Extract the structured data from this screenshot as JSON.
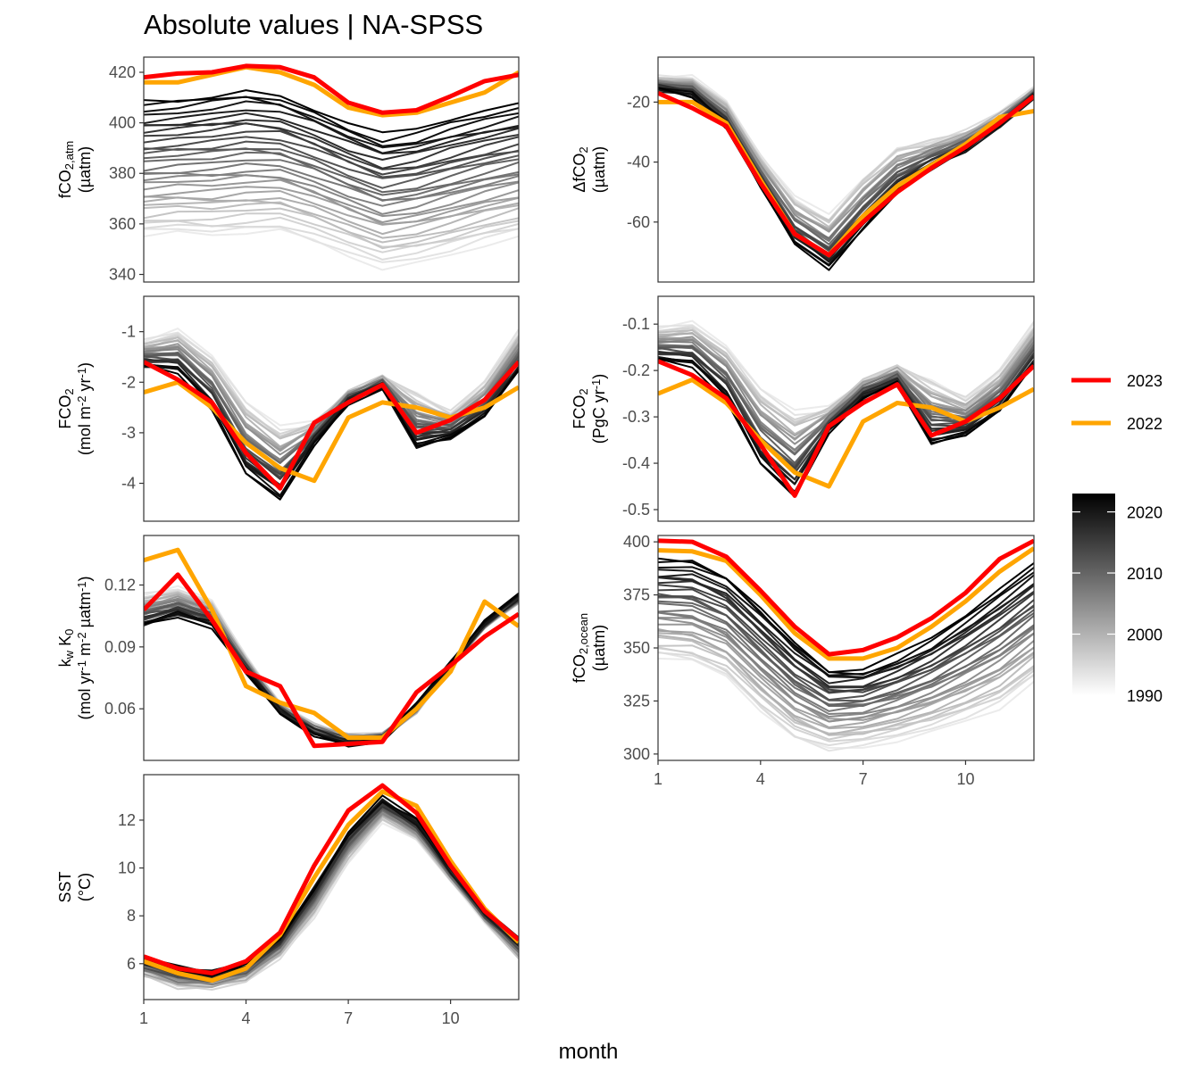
{
  "title": "Absolute values | NA-SPSS",
  "xlabel": "month",
  "highlight_colors": {
    "2023": "#ff0000",
    "2022": "#ffa500"
  },
  "legend": {
    "highlight": [
      {
        "label": "2023",
        "color": "#ff0000"
      },
      {
        "label": "2022",
        "color": "#ffa500"
      }
    ],
    "colorbar": {
      "labels": [
        "2020",
        "2010",
        "2000",
        "1990"
      ],
      "values": [
        2020,
        2010,
        2000,
        1990
      ],
      "range": [
        1990,
        2023
      ],
      "low_color": "#ffffff",
      "high_color": "#000000"
    }
  },
  "chart_data": [
    {
      "type": "line",
      "panel": "fco2-atm",
      "ylabel_lines": [
        "fCO",
        "2,atm",
        "(µatm)"
      ],
      "x": [
        1,
        2,
        3,
        4,
        5,
        6,
        7,
        8,
        9,
        10,
        11,
        12
      ],
      "xticks": [
        "1",
        "4",
        "7",
        "10"
      ],
      "ylim": [
        337,
        426
      ],
      "yticks": [
        340,
        360,
        380,
        400,
        420
      ],
      "year_range": [
        1990,
        2021
      ],
      "background_first": [
        355,
        356,
        355,
        356,
        357,
        353,
        348,
        343,
        345,
        348,
        352,
        355
      ],
      "background_last": [
        408,
        409,
        411,
        413,
        411,
        406,
        400,
        395,
        397,
        401,
        404,
        407
      ],
      "series": [
        {
          "name": "2022",
          "values": [
            416,
            416,
            419,
            422,
            420,
            415,
            406,
            403,
            404,
            408,
            412,
            420
          ]
        },
        {
          "name": "2023",
          "values": [
            418,
            419.5,
            420,
            422.5,
            422,
            418,
            408,
            404,
            405,
            410.5,
            416.5,
            419
          ]
        }
      ]
    },
    {
      "type": "line",
      "panel": "delta-fco2",
      "ylabel_lines": [
        "ΔfCO",
        "2",
        "(µatm)"
      ],
      "x": [
        1,
        2,
        3,
        4,
        5,
        6,
        7,
        8,
        9,
        10,
        11,
        12
      ],
      "xticks": [
        "1",
        "4",
        "7",
        "10"
      ],
      "ylim": [
        -80,
        -5
      ],
      "yticks": [
        -60,
        -40,
        -20
      ],
      "year_range": [
        1990,
        2021
      ],
      "background_first": [
        -12,
        -12,
        -20,
        -38,
        -52,
        -58,
        -45,
        -35,
        -33,
        -30,
        -24,
        -16
      ],
      "background_last": [
        -16,
        -18,
        -28,
        -48,
        -67,
        -75,
        -62,
        -50,
        -42,
        -36,
        -28,
        -18
      ],
      "series": [
        {
          "name": "2022",
          "values": [
            -20,
            -20,
            -27,
            -46,
            -64,
            -71,
            -58,
            -48,
            -41,
            -34,
            -25,
            -23
          ]
        },
        {
          "name": "2023",
          "values": [
            -17,
            -22,
            -28,
            -47,
            -64,
            -71,
            -60,
            -50,
            -42,
            -35,
            -27,
            -18
          ]
        }
      ]
    },
    {
      "type": "line",
      "panel": "fco2-flux-area",
      "ylabel_lines": [
        "FCO",
        "2",
        "(mol m",
        "-2",
        " yr",
        "-1",
        ")"
      ],
      "x": [
        1,
        2,
        3,
        4,
        5,
        6,
        7,
        8,
        9,
        10,
        11,
        12
      ],
      "xticks": [
        "1",
        "4",
        "7",
        "10"
      ],
      "ylim": [
        -4.75,
        -0.3
      ],
      "yticks": [
        -4,
        -3,
        -2,
        -1
      ],
      "year_range": [
        1990,
        2021
      ],
      "background_first": [
        -1.2,
        -1.0,
        -1.5,
        -2.4,
        -2.9,
        -2.8,
        -2.2,
        -1.9,
        -2.2,
        -2.6,
        -2.0,
        -1.0
      ],
      "background_last": [
        -1.7,
        -1.8,
        -2.5,
        -3.8,
        -4.3,
        -3.2,
        -2.4,
        -2.1,
        -3.3,
        -3.1,
        -2.7,
        -1.8
      ],
      "series": [
        {
          "name": "2022",
          "values": [
            -2.2,
            -2.0,
            -2.5,
            -3.2,
            -3.7,
            -3.95,
            -2.7,
            -2.4,
            -2.5,
            -2.7,
            -2.5,
            -2.1
          ]
        },
        {
          "name": "2023",
          "values": [
            -1.6,
            -1.95,
            -2.4,
            -3.4,
            -4.1,
            -2.8,
            -2.4,
            -2.05,
            -3.0,
            -2.75,
            -2.35,
            -1.6
          ]
        }
      ]
    },
    {
      "type": "line",
      "panel": "fco2-flux-total",
      "ylabel_lines": [
        "FCO",
        "2",
        "(PgC yr",
        "-1",
        ")"
      ],
      "x": [
        1,
        2,
        3,
        4,
        5,
        6,
        7,
        8,
        9,
        10,
        11,
        12
      ],
      "xticks": [
        "1",
        "4",
        "7",
        "10"
      ],
      "ylim": [
        -0.525,
        -0.04
      ],
      "yticks": [
        -0.5,
        -0.4,
        -0.3,
        -0.2,
        -0.1
      ],
      "year_range": [
        1990,
        2021
      ],
      "background_first": [
        -0.11,
        -0.1,
        -0.15,
        -0.24,
        -0.29,
        -0.28,
        -0.22,
        -0.19,
        -0.22,
        -0.26,
        -0.2,
        -0.1
      ],
      "background_last": [
        -0.18,
        -0.19,
        -0.26,
        -0.4,
        -0.47,
        -0.33,
        -0.26,
        -0.23,
        -0.36,
        -0.34,
        -0.29,
        -0.19
      ],
      "series": [
        {
          "name": "2022",
          "values": [
            -0.25,
            -0.22,
            -0.27,
            -0.35,
            -0.42,
            -0.45,
            -0.31,
            -0.27,
            -0.28,
            -0.31,
            -0.28,
            -0.24
          ]
        },
        {
          "name": "2023",
          "values": [
            -0.18,
            -0.21,
            -0.26,
            -0.36,
            -0.47,
            -0.32,
            -0.27,
            -0.23,
            -0.34,
            -0.31,
            -0.26,
            -0.19
          ]
        }
      ]
    },
    {
      "type": "line",
      "panel": "kw-k0",
      "ylabel_lines": [
        "k",
        "w",
        " K",
        "0",
        "(mol yr",
        "-1",
        " m",
        "-2",
        " µatm",
        "-1",
        ")"
      ],
      "x": [
        1,
        2,
        3,
        4,
        5,
        6,
        7,
        8,
        9,
        10,
        11,
        12
      ],
      "xticks": [
        "1",
        "4",
        "7",
        "10"
      ],
      "ylim": [
        0.035,
        0.144
      ],
      "yticks": [
        0.06,
        0.09,
        0.12
      ],
      "year_range": [
        1990,
        2021
      ],
      "background_first": [
        0.115,
        0.118,
        0.112,
        0.085,
        0.062,
        0.052,
        0.047,
        0.047,
        0.058,
        0.08,
        0.1,
        0.112
      ],
      "background_last": [
        0.1,
        0.105,
        0.1,
        0.078,
        0.058,
        0.048,
        0.043,
        0.045,
        0.062,
        0.082,
        0.102,
        0.115
      ],
      "series": [
        {
          "name": "2022",
          "values": [
            0.132,
            0.137,
            0.108,
            0.071,
            0.063,
            0.058,
            0.046,
            0.046,
            0.06,
            0.078,
            0.112,
            0.1
          ]
        },
        {
          "name": "2023",
          "values": [
            0.108,
            0.125,
            0.103,
            0.078,
            0.071,
            0.042,
            0.043,
            0.044,
            0.068,
            0.081,
            0.095,
            0.106
          ]
        }
      ]
    },
    {
      "type": "line",
      "panel": "fco2-ocean",
      "ylabel_lines": [
        "fCO",
        "2,ocean",
        "(µatm)"
      ],
      "x": [
        1,
        2,
        3,
        4,
        5,
        6,
        7,
        8,
        9,
        10,
        11,
        12
      ],
      "xticks": [
        "1",
        "4",
        "7",
        "10"
      ],
      "ylim": [
        297,
        403
      ],
      "yticks": [
        300,
        325,
        350,
        375,
        400
      ],
      "year_range": [
        1990,
        2021
      ],
      "background_first": [
        345,
        343,
        336,
        320,
        307,
        302,
        304,
        307,
        311,
        316,
        322,
        334
      ],
      "background_last": [
        391,
        391,
        384,
        369,
        353,
        340,
        340,
        346,
        354,
        365,
        377,
        389
      ],
      "series": [
        {
          "name": "2022",
          "values": [
            396,
            395.5,
            391,
            375,
            357,
            345,
            345,
            350,
            360,
            372,
            386,
            397
          ]
        },
        {
          "name": "2023",
          "values": [
            400.5,
            400,
            393,
            377,
            360,
            347,
            349,
            355,
            364,
            376,
            392,
            400.5
          ]
        }
      ]
    },
    {
      "type": "line",
      "panel": "sst",
      "ylabel_lines": [
        "SST",
        "(°C)"
      ],
      "x": [
        1,
        2,
        3,
        4,
        5,
        6,
        7,
        8,
        9,
        10,
        11,
        12
      ],
      "xticks": [
        "1",
        "4",
        "7",
        "10"
      ],
      "ylim": [
        4.5,
        13.9
      ],
      "yticks": [
        6,
        8,
        10,
        12
      ],
      "year_range": [
        1990,
        2021
      ],
      "background_first": [
        5.5,
        5.0,
        5.0,
        5.3,
        6.3,
        8.0,
        10.3,
        12.0,
        11.2,
        9.5,
        7.8,
        6.2
      ],
      "background_last": [
        6.2,
        5.8,
        5.6,
        6.0,
        7.1,
        9.2,
        11.5,
        12.9,
        12.0,
        10.0,
        8.2,
        7.0
      ],
      "series": [
        {
          "name": "2022",
          "values": [
            6.1,
            5.6,
            5.3,
            5.8,
            7.2,
            9.6,
            11.8,
            13.2,
            12.6,
            10.3,
            8.3,
            6.9
          ]
        },
        {
          "name": "2023",
          "values": [
            6.3,
            5.8,
            5.6,
            6.1,
            7.3,
            10.1,
            12.4,
            13.45,
            12.3,
            10.1,
            8.2,
            7.0
          ]
        }
      ]
    }
  ]
}
